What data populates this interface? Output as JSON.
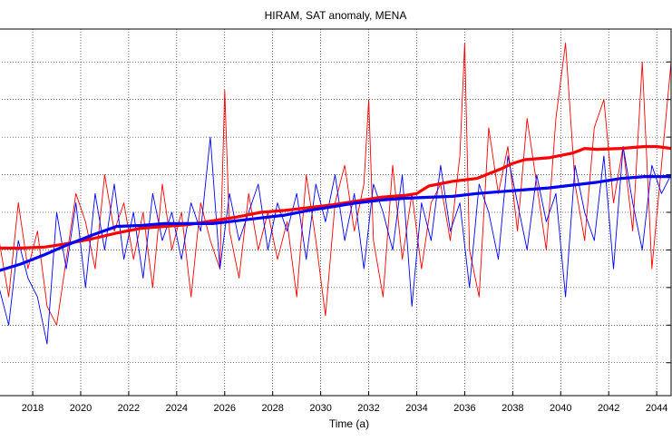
{
  "chart_data": {
    "type": "line",
    "title": "HIRAM, SAT anomaly, MENA",
    "xlabel": "Time (a)",
    "ylabel": "",
    "xlim": [
      2016.6,
      2044.6
    ],
    "ylim": [
      -1.95,
      1.95
    ],
    "x_ticks": [
      "2018",
      "2020",
      "2022",
      "2024",
      "2026",
      "2028",
      "2030",
      "2032",
      "2034",
      "2036",
      "2038",
      "2040",
      "2042",
      "2044"
    ],
    "y_gridlines": [
      -1.6,
      -1.2,
      -0.8,
      -0.4,
      0,
      0.4,
      0.8,
      1.2,
      1.6
    ],
    "grid": "dotted",
    "series": [
      {
        "color": "#ff0000",
        "style": "thin",
        "x": [
          2016.6,
          2017.0,
          2017.4,
          2017.8,
          2018.2,
          2018.6,
          2019.0,
          2019.4,
          2019.8,
          2020.2,
          2020.6,
          2021.0,
          2021.4,
          2021.8,
          2022.2,
          2022.6,
          2023.0,
          2023.4,
          2023.8,
          2024.2,
          2024.6,
          2025.0,
          2025.4,
          2025.8,
          2026.0,
          2026.2,
          2026.6,
          2027.0,
          2027.4,
          2027.8,
          2028.2,
          2028.6,
          2029.0,
          2029.4,
          2029.8,
          2030.2,
          2030.6,
          2031.0,
          2031.4,
          2031.8,
          2032.0,
          2032.2,
          2032.6,
          2033.0,
          2033.4,
          2033.8,
          2034.2,
          2034.6,
          2035.0,
          2035.4,
          2035.8,
          2036.0,
          2036.2,
          2036.6,
          2037.0,
          2037.4,
          2037.8,
          2038.2,
          2038.6,
          2039.0,
          2039.4,
          2039.8,
          2040.2,
          2040.6,
          2041.0,
          2041.4,
          2041.8,
          2042.2,
          2042.6,
          2043.0,
          2043.4,
          2043.8,
          2044.2,
          2044.6
        ],
        "y": [
          -0.3,
          -0.9,
          0.1,
          -0.6,
          -0.2,
          -1.0,
          -1.2,
          -0.5,
          0.2,
          -0.1,
          -0.6,
          0.4,
          -0.2,
          0.1,
          -0.5,
          0.0,
          -0.8,
          0.3,
          -0.4,
          0.0,
          -0.9,
          0.1,
          -0.3,
          -0.6,
          1.3,
          -0.2,
          -0.7,
          0.2,
          -0.4,
          0.0,
          -0.5,
          -0.1,
          -0.9,
          0.4,
          -0.3,
          -1.1,
          0.1,
          0.5,
          -0.2,
          0.3,
          1.2,
          -0.3,
          -0.9,
          0.5,
          -0.5,
          0.2,
          -0.6,
          0.1,
          0.3,
          -0.3,
          0.6,
          1.8,
          -0.4,
          -0.9,
          0.9,
          0.2,
          0.7,
          -0.2,
          1.0,
          0.3,
          -0.4,
          1.0,
          1.8,
          0.3,
          -0.3,
          0.9,
          1.2,
          0.1,
          0.7,
          -0.2,
          1.6,
          -0.6,
          0.5,
          1.6
        ]
      },
      {
        "color": "#0000ff",
        "style": "thin",
        "x": [
          2016.6,
          2017.0,
          2017.4,
          2017.8,
          2018.2,
          2018.6,
          2019.0,
          2019.4,
          2019.8,
          2020.2,
          2020.6,
          2021.0,
          2021.4,
          2021.8,
          2022.2,
          2022.6,
          2023.0,
          2023.4,
          2023.8,
          2024.2,
          2024.6,
          2025.0,
          2025.4,
          2025.8,
          2026.2,
          2026.6,
          2027.0,
          2027.4,
          2027.8,
          2028.2,
          2028.6,
          2029.0,
          2029.4,
          2029.8,
          2030.2,
          2030.6,
          2031.0,
          2031.4,
          2031.8,
          2032.2,
          2032.6,
          2033.0,
          2033.4,
          2033.8,
          2034.2,
          2034.6,
          2035.0,
          2035.4,
          2035.8,
          2036.2,
          2036.6,
          2037.0,
          2037.4,
          2037.8,
          2038.2,
          2038.6,
          2039.0,
          2039.4,
          2039.8,
          2040.2,
          2040.6,
          2041.0,
          2041.4,
          2041.8,
          2042.2,
          2042.6,
          2043.0,
          2043.4,
          2043.8,
          2044.2,
          2044.6
        ],
        "y": [
          -0.8,
          -1.2,
          -0.3,
          -0.7,
          -0.9,
          -1.4,
          0.0,
          -0.6,
          0.1,
          -0.8,
          0.2,
          -0.4,
          0.3,
          -0.5,
          0.0,
          -0.7,
          0.2,
          -0.3,
          0.0,
          -0.5,
          0.1,
          -0.2,
          0.8,
          -0.6,
          0.2,
          -0.3,
          0.0,
          0.3,
          -0.4,
          0.1,
          -0.2,
          0.2,
          -0.5,
          0.3,
          -0.1,
          0.4,
          -0.3,
          0.2,
          -0.6,
          0.3,
          0.0,
          -0.4,
          0.4,
          -1.0,
          0.1,
          -0.3,
          0.5,
          -0.2,
          0.1,
          -0.8,
          0.3,
          0.0,
          -0.5,
          0.6,
          0.1,
          -0.4,
          0.4,
          -0.1,
          0.2,
          -0.9,
          0.5,
          0.0,
          -0.3,
          0.6,
          -0.6,
          0.7,
          0.1,
          -0.4,
          0.5,
          0.2,
          0.4
        ]
      },
      {
        "color": "#ff0000",
        "style": "thick",
        "x": [
          2016.6,
          2017.5,
          2018.5,
          2019.5,
          2020.5,
          2021.5,
          2022.5,
          2023.5,
          2024.5,
          2025.5,
          2026.5,
          2027.5,
          2028.5,
          2029.5,
          2030.5,
          2031.5,
          2032.5,
          2033.5,
          2034.0,
          2034.5,
          2035.5,
          2036.5,
          2037.5,
          2038.0,
          2038.5,
          2039.5,
          2040.5,
          2041.0,
          2041.5,
          2042.5,
          2043.5,
          2044.0,
          2044.6
        ],
        "y": [
          -0.38,
          -0.38,
          -0.37,
          -0.33,
          -0.28,
          -0.22,
          -0.17,
          -0.15,
          -0.13,
          -0.09,
          -0.05,
          0.0,
          0.02,
          0.05,
          0.08,
          0.12,
          0.16,
          0.18,
          0.2,
          0.28,
          0.33,
          0.36,
          0.46,
          0.52,
          0.56,
          0.58,
          0.63,
          0.68,
          0.67,
          0.68,
          0.7,
          0.7,
          0.68
        ]
      },
      {
        "color": "#0000ff",
        "style": "thick",
        "x": [
          2016.6,
          2017.5,
          2018.5,
          2019.5,
          2020.5,
          2021.5,
          2022.5,
          2023.5,
          2024.5,
          2025.5,
          2026.5,
          2027.5,
          2028.5,
          2029.5,
          2030.5,
          2031.5,
          2032.5,
          2033.5,
          2034.5,
          2035.5,
          2036.5,
          2037.5,
          2038.5,
          2039.5,
          2040.5,
          2041.5,
          2042.5,
          2043.5,
          2044.6
        ],
        "y": [
          -0.62,
          -0.55,
          -0.45,
          -0.34,
          -0.24,
          -0.15,
          -0.14,
          -0.12,
          -0.12,
          -0.12,
          -0.09,
          -0.06,
          -0.03,
          0.02,
          0.06,
          0.1,
          0.13,
          0.15,
          0.16,
          0.17,
          0.2,
          0.22,
          0.24,
          0.26,
          0.29,
          0.32,
          0.36,
          0.38,
          0.38
        ]
      }
    ]
  }
}
